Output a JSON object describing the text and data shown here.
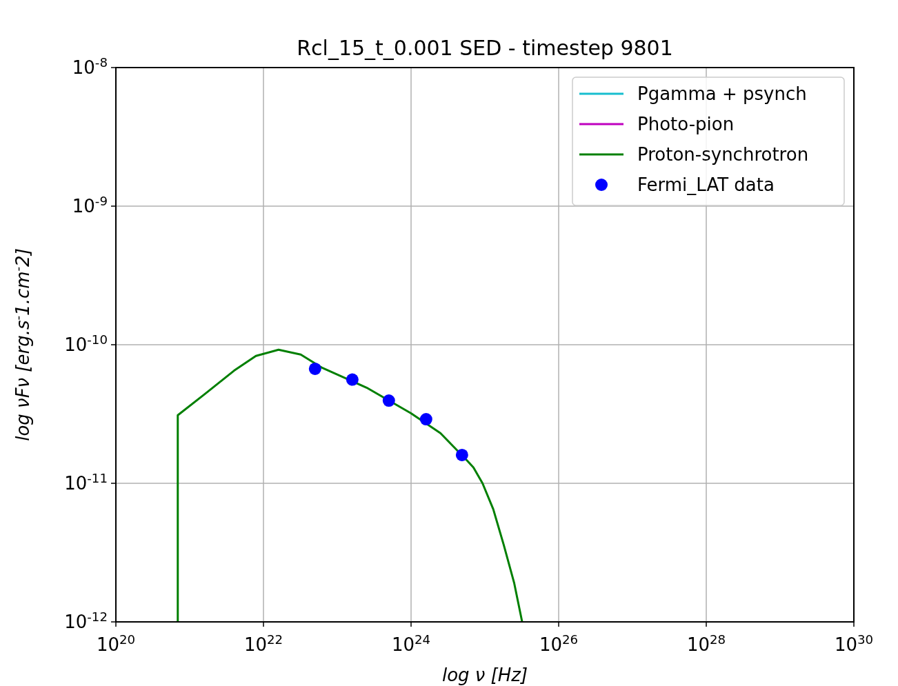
{
  "chart_data": {
    "type": "line",
    "title": "Rcl_15_t_0.001 SED - timestep 9801",
    "xlabel": "log ν [Hz]",
    "ylabel": "log νFν [erg.s$^{-}$1.cm$^{-}$2]",
    "log": "xy",
    "grid": true,
    "legend": "top right",
    "xlim": [
      1e+20,
      1e+30
    ],
    "ylim": [
      1e-12,
      1e-08
    ],
    "xticks": [
      {
        "value": 1e+20,
        "label": "10$^{20}$"
      },
      {
        "value": 1e+22,
        "label": "10$^{22}$"
      },
      {
        "value": 1e+24,
        "label": "10$^{24}$"
      },
      {
        "value": 1e+26,
        "label": "10$^{26}$"
      },
      {
        "value": 1e+28,
        "label": "10$^{28}$"
      },
      {
        "value": 1e+30,
        "label": "10$^{30}$"
      }
    ],
    "yticks": [
      {
        "value": 1e-12,
        "label": "10$^{-12}$"
      },
      {
        "value": 1e-11,
        "label": "10$^{-11}$"
      },
      {
        "value": 1e-10,
        "label": "10$^{-10}$"
      },
      {
        "value": 1e-09,
        "label": "10$^{-9}$"
      },
      {
        "value": 1e-08,
        "label": "10$^{-8}$"
      }
    ],
    "series": [
      {
        "name": "Pgamma + psynch",
        "type": "line",
        "color": "#17becf"
      },
      {
        "name": "Photo-pion",
        "type": "line",
        "color": "#bf00bf"
      },
      {
        "name": "Proton-synchrotron",
        "color": "#007f00",
        "x": [
          6.9e+20,
          6.9e+20,
          1.6e+21,
          4e+21,
          7.9e+21,
          1.6e+22,
          3.2e+22,
          6.3e+22,
          2.5e+23,
          1e+24,
          2.5e+24,
          5.8e+24,
          7e+24,
          9.3e+24,
          1.3e+25,
          1.8e+25,
          2.5e+25,
          3.2e+25
        ],
        "values": [
          1e-12,
          3.1e-11,
          4.4e-11,
          6.5e-11,
          8.3e-11,
          9.2e-11,
          8.5e-11,
          6.8e-11,
          4.9e-11,
          3.2e-11,
          2.3e-11,
          1.45e-11,
          1.3e-11,
          1e-11,
          6.5e-12,
          3.6e-12,
          1.9e-12,
          1e-12
        ]
      },
      {
        "name": "Fermi_LAT data",
        "type": "scatter",
        "marker": "circle",
        "color": "#0000ff",
        "x": [
          5e+22,
          1.6e+23,
          5e+23,
          1.6e+24,
          4.9e+24
        ],
        "values": [
          6.7e-11,
          5.6e-11,
          3.95e-11,
          2.9e-11,
          1.6e-11
        ]
      }
    ]
  }
}
